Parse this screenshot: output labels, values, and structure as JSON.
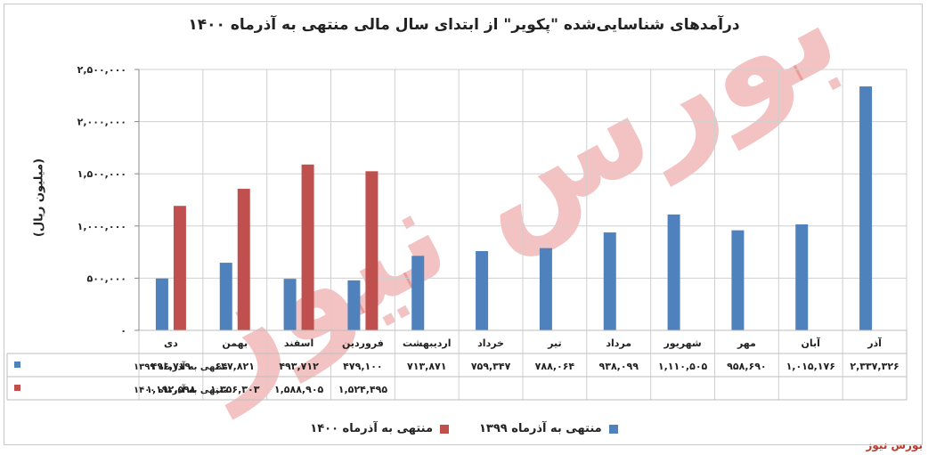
{
  "colors": {
    "series_1399": "#4f81bd",
    "series_1400": "#c0504d",
    "grid": "#cfcfcf",
    "watermark": "#d9534f"
  },
  "source": "بورس نیوز",
  "watermark_text": "بورس نیوز",
  "chart_data": {
    "type": "bar",
    "title": "درآمدهای شناسایی‌شده \"پکویر\" از ابتدای سال مالی منتهی به آذرماه ۱۴۰۰",
    "ylabel": "(میلیون ریال)",
    "xlabel": "",
    "ylim": [
      0,
      2500000
    ],
    "yticks": [
      0,
      500000,
      1000000,
      1500000,
      2000000,
      2500000
    ],
    "ytick_labels": [
      "۰",
      "۵۰۰,۰۰۰",
      "۱,۰۰۰,۰۰۰",
      "۱,۵۰۰,۰۰۰",
      "۲,۰۰۰,۰۰۰",
      "۲,۵۰۰,۰۰۰"
    ],
    "grid": true,
    "legend": "bottom",
    "categories": [
      "دی",
      "بهمن",
      "اسفند",
      "فروردین",
      "اردیبهشت",
      "خرداد",
      "تیر",
      "مرداد",
      "شهریور",
      "مهر",
      "آبان",
      "آذر"
    ],
    "series": [
      {
        "name": "منتهی به آذرماه ۱۳۹۹",
        "values": [
          496719,
          647821,
          493712,
          479100,
          713871,
          759347,
          788064,
          938099,
          1110505,
          958690,
          1015176,
          2337326
        ],
        "labels": [
          "۴۹۶,۷۱۹",
          "۶۴۷,۸۲۱",
          "۴۹۳,۷۱۲",
          "۴۷۹,۱۰۰",
          "۷۱۳,۸۷۱",
          "۷۵۹,۳۴۷",
          "۷۸۸,۰۶۴",
          "۹۳۸,۰۹۹",
          "۱,۱۱۰,۵۰۵",
          "۹۵۸,۶۹۰",
          "۱,۰۱۵,۱۷۶",
          "۲,۳۳۷,۳۲۶"
        ]
      },
      {
        "name": "منتهی به آذرماه ۱۴۰۰",
        "values": [
          1192598,
          1356303,
          1588905,
          1524495,
          null,
          null,
          null,
          null,
          null,
          null,
          null,
          null
        ],
        "labels": [
          "۱,۱۹۲,۵۹۸",
          "۱,۳۵۶,۳۰۳",
          "۱,۵۸۸,۹۰۵",
          "۱,۵۲۴,۴۹۵",
          "",
          "",
          "",
          "",
          "",
          "",
          "",
          ""
        ]
      }
    ]
  }
}
